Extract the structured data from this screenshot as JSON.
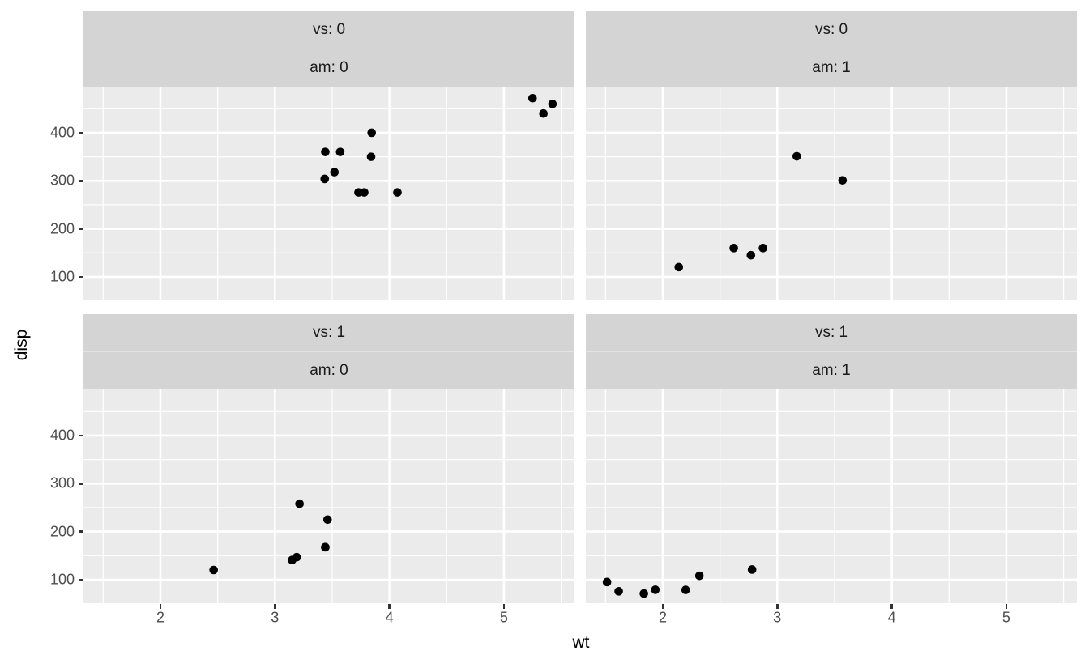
{
  "chart_data": {
    "type": "scatter",
    "xlabel": "wt",
    "ylabel": "disp",
    "x_axis": {
      "lim": [
        1.328,
        5.616
      ],
      "ticks": [
        2,
        3,
        4,
        5
      ],
      "tick_labels": [
        "2",
        "3",
        "4",
        "5"
      ],
      "minor": [
        1.5,
        2.5,
        3.5,
        4.5,
        5.5
      ]
    },
    "y_axis": {
      "lim": [
        51,
        496
      ],
      "ticks": [
        100,
        200,
        300,
        400
      ],
      "tick_labels": [
        "100",
        "200",
        "300",
        "400"
      ],
      "minor": [
        150,
        250,
        350,
        450
      ]
    },
    "grid": true,
    "legend": "none",
    "point_color": "#000000",
    "point_radius": 5.3,
    "colors": {
      "panel_bg": "#ebebeb",
      "strip_bg": "#d4d4d4",
      "grid_line": "#ffffff",
      "tick_text": "#4d4d4d",
      "strip_text": "#1a1a1a",
      "axis_title": "#000000"
    },
    "facets": [
      {
        "vs_label": "vs: 0",
        "am_label": "am: 0",
        "points": [
          [
            3.44,
            360
          ],
          [
            3.57,
            360
          ],
          [
            3.73,
            275.8
          ],
          [
            3.78,
            275.8
          ],
          [
            4.07,
            275.8
          ],
          [
            3.52,
            318
          ],
          [
            3.435,
            304
          ],
          [
            3.84,
            350
          ],
          [
            3.845,
            400
          ],
          [
            5.25,
            472
          ],
          [
            5.424,
            460
          ],
          [
            5.345,
            440
          ]
        ]
      },
      {
        "vs_label": "vs: 0",
        "am_label": "am: 1",
        "points": [
          [
            2.62,
            160
          ],
          [
            2.875,
            160
          ],
          [
            2.14,
            120.3
          ],
          [
            3.17,
            351
          ],
          [
            2.77,
            145
          ],
          [
            3.57,
            301
          ]
        ]
      },
      {
        "vs_label": "vs: 1",
        "am_label": "am: 0",
        "points": [
          [
            3.215,
            258
          ],
          [
            3.46,
            225
          ],
          [
            3.19,
            146.7
          ],
          [
            3.15,
            140.8
          ],
          [
            3.44,
            167.6
          ],
          [
            3.44,
            167.6
          ],
          [
            2.465,
            120.1
          ]
        ]
      },
      {
        "vs_label": "vs: 1",
        "am_label": "am: 1",
        "points": [
          [
            2.32,
            108
          ],
          [
            2.2,
            78.7
          ],
          [
            1.615,
            75.7
          ],
          [
            1.835,
            71.1
          ],
          [
            1.935,
            79
          ],
          [
            1.513,
            95.1
          ],
          [
            2.78,
            121
          ]
        ]
      }
    ]
  }
}
